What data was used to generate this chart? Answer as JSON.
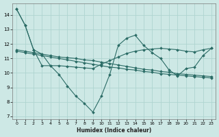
{
  "xlabel": "Humidex (Indice chaleur)",
  "xlim": [
    -0.5,
    23.5
  ],
  "ylim": [
    6.8,
    14.8
  ],
  "yticks": [
    7,
    8,
    9,
    10,
    11,
    12,
    13,
    14
  ],
  "xticks": [
    0,
    1,
    2,
    3,
    4,
    5,
    6,
    7,
    8,
    9,
    10,
    11,
    12,
    13,
    14,
    15,
    16,
    17,
    18,
    19,
    20,
    21,
    22,
    23
  ],
  "bg_color": "#cde8e5",
  "grid_color": "#aed4d0",
  "line_color": "#2a6b65",
  "line1_x": [
    0,
    1,
    2,
    3,
    4,
    5,
    6,
    7,
    8,
    9,
    10,
    11,
    12,
    13,
    14,
    15,
    16,
    17,
    18,
    19,
    20,
    21,
    22,
    23
  ],
  "line1_y": [
    14.4,
    13.3,
    11.6,
    11.3,
    10.5,
    9.9,
    9.1,
    8.4,
    7.9,
    7.3,
    8.4,
    9.9,
    11.9,
    12.4,
    12.6,
    11.9,
    11.4,
    11.0,
    10.2,
    9.8,
    10.3,
    10.4,
    11.2,
    11.7
  ],
  "line2_x": [
    0,
    1,
    2,
    3,
    4,
    5,
    6,
    7,
    8,
    9,
    10,
    11,
    12,
    13,
    14,
    15,
    16,
    17,
    18,
    19,
    20,
    21,
    22,
    23
  ],
  "line2_y": [
    11.6,
    11.5,
    11.4,
    11.3,
    11.2,
    11.1,
    11.05,
    11.0,
    10.9,
    10.85,
    10.75,
    10.65,
    10.55,
    10.45,
    10.35,
    10.25,
    10.2,
    10.1,
    10.05,
    9.95,
    9.9,
    9.85,
    9.8,
    9.75
  ],
  "line3_x": [
    0,
    1,
    2,
    3,
    4,
    5,
    6,
    7,
    8,
    9,
    10,
    11,
    12,
    13,
    14,
    15,
    16,
    17,
    18,
    19,
    20,
    21,
    22,
    23
  ],
  "line3_y": [
    11.5,
    11.4,
    11.3,
    11.2,
    11.1,
    11.0,
    10.9,
    10.8,
    10.7,
    10.6,
    10.5,
    10.4,
    10.35,
    10.25,
    10.2,
    10.1,
    10.05,
    9.95,
    9.9,
    9.85,
    9.8,
    9.75,
    9.7,
    9.65
  ],
  "line4_x": [
    0,
    1,
    2,
    3,
    4,
    5,
    6,
    7,
    8,
    9,
    10,
    11,
    12,
    13,
    14,
    15,
    16,
    17,
    18,
    19,
    20,
    21,
    22,
    23
  ],
  "line4_y": [
    14.4,
    13.3,
    11.6,
    10.5,
    10.5,
    10.5,
    10.45,
    10.4,
    10.35,
    10.3,
    10.6,
    10.85,
    11.1,
    11.35,
    11.5,
    11.6,
    11.65,
    11.7,
    11.65,
    11.6,
    11.5,
    11.45,
    11.6,
    11.7
  ]
}
